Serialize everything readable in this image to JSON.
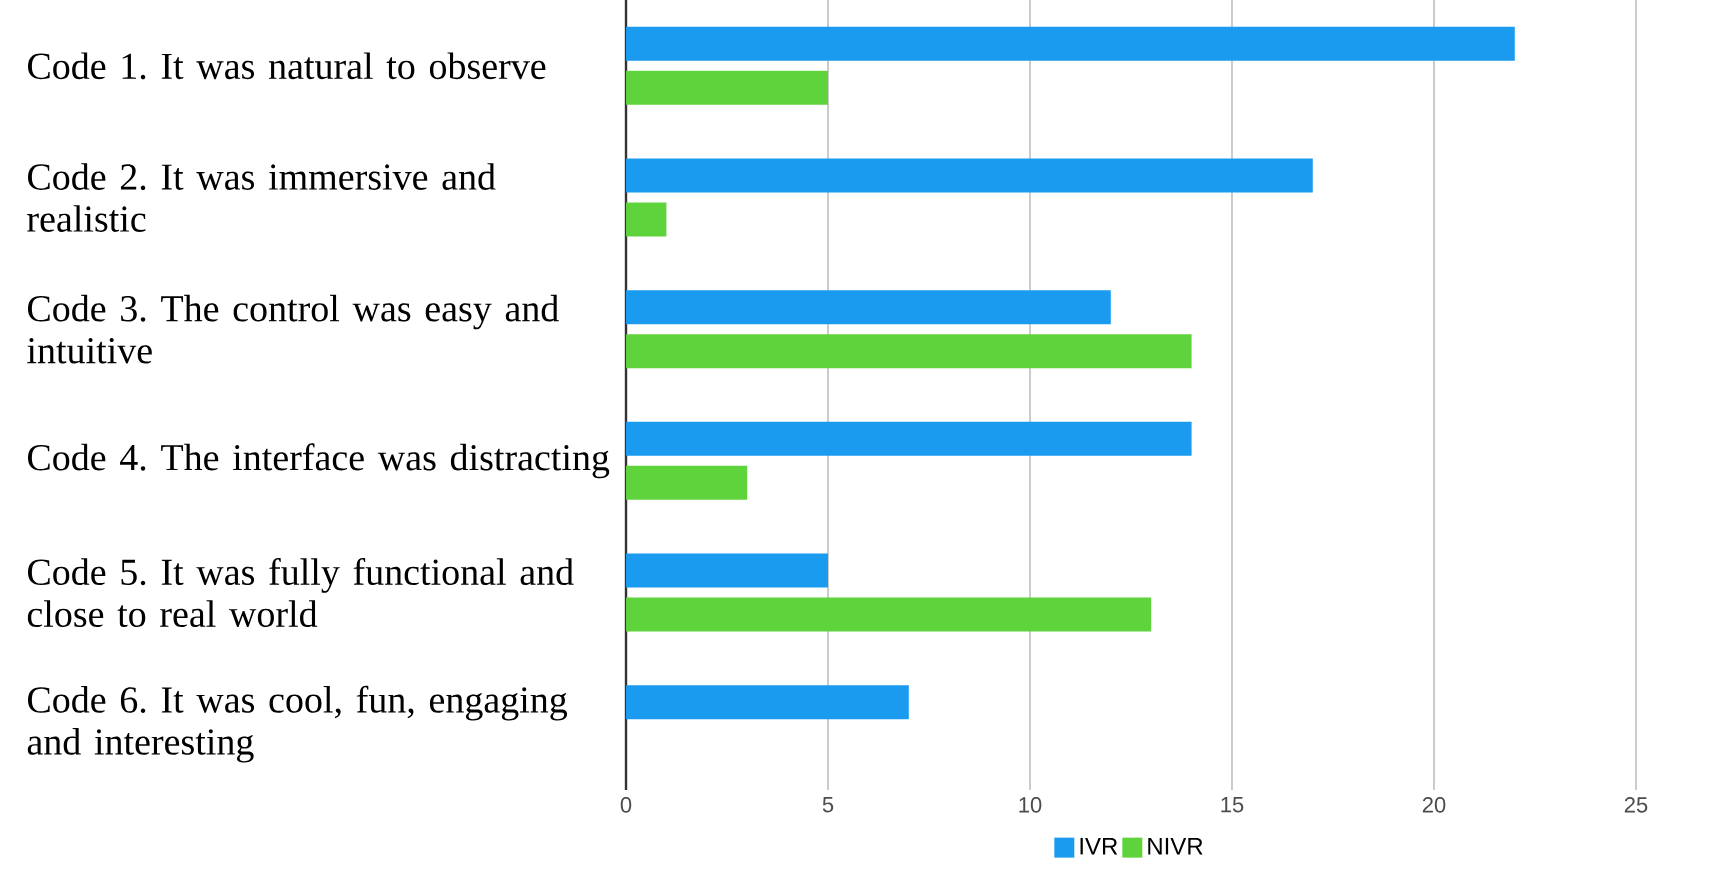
{
  "chart_data": {
    "type": "bar",
    "orientation": "horizontal",
    "categories": [
      "Code 1. It was natural to observe",
      "Code 2. It was immersive and realistic",
      "Code 3. The control was easy and intuitive",
      "Code 4. The interface was distracting",
      "Code 5. It was fully functional and close to real world",
      "Code 6. It was cool, fun, engaging and interesting"
    ],
    "series": [
      {
        "name": "IVR",
        "color": "#1a9bf0",
        "values": [
          22,
          17,
          12,
          14,
          5,
          7
        ]
      },
      {
        "name": "NIVR",
        "color": "#5fd33c",
        "values": [
          5,
          1,
          14,
          3,
          13,
          0
        ]
      }
    ],
    "xlim": [
      0,
      25
    ],
    "xticks": [
      0,
      5,
      10,
      15,
      20,
      25
    ],
    "grid": "x",
    "legend": "bottom"
  }
}
